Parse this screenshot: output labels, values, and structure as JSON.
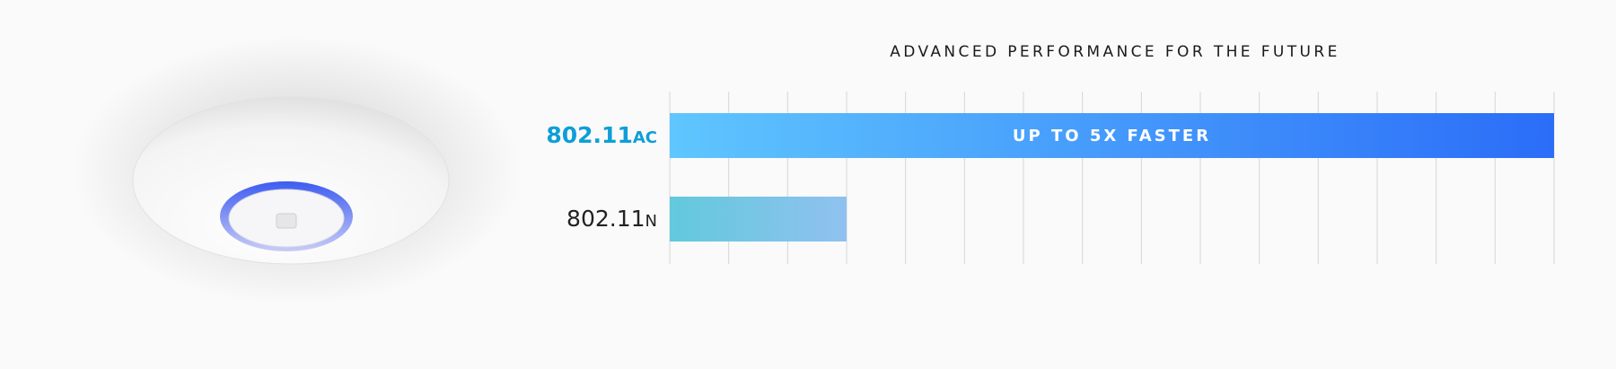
{
  "chart_data": {
    "type": "hbar",
    "title": "ADVANCED PERFORMANCE FOR THE FUTURE",
    "categories": [
      "802.11ac",
      "802.11n"
    ],
    "values": [
      5,
      1
    ],
    "xlim": [
      0,
      5
    ],
    "grid_divisions": 15,
    "bar_colors": [
      [
        "#5fc6fe",
        "#2b6df8"
      ],
      [
        "#62c9dc",
        "#90c1f0"
      ]
    ],
    "label_colors": [
      "#0e9ed8",
      "#222222"
    ],
    "annotation": "UP TO 5X FASTER"
  }
}
